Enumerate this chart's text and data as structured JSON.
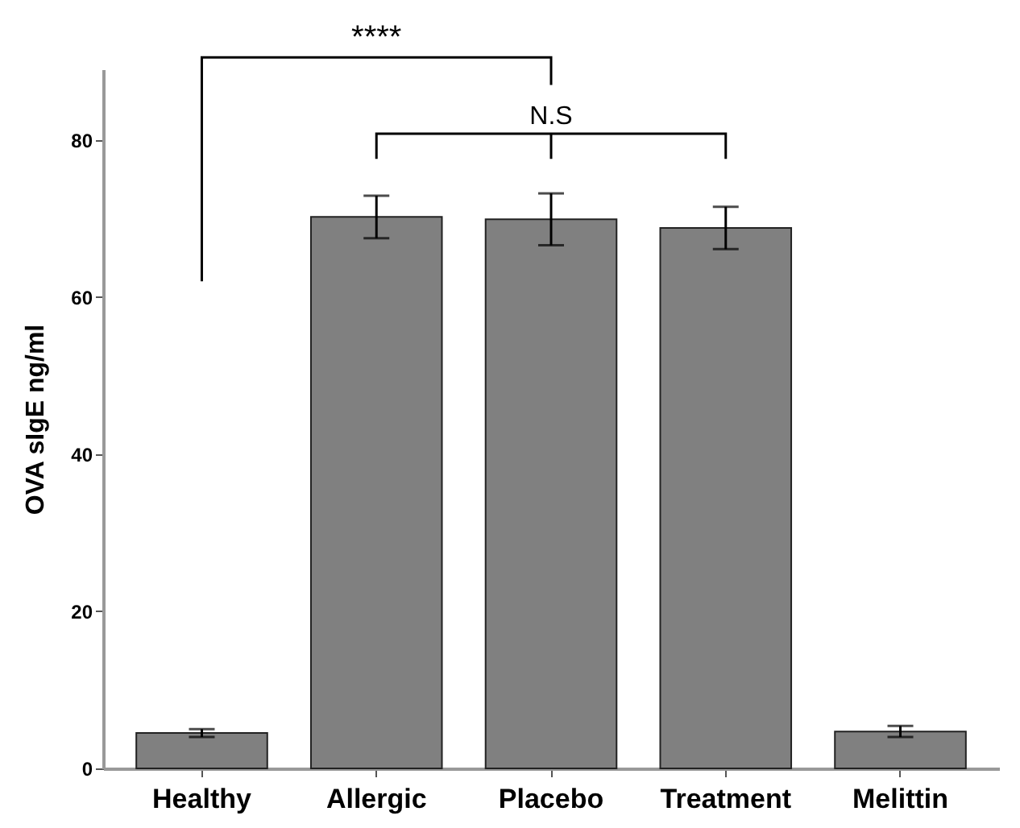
{
  "chart_data": {
    "type": "bar",
    "ylabel": "OVA sIgE ng/ml",
    "categories": [
      "Healthy",
      "Allergic",
      "Placebo",
      "Treatment",
      "Melittin"
    ],
    "values": [
      4.5,
      70.2,
      69.9,
      68.8,
      4.7
    ],
    "errors": [
      0.5,
      2.7,
      3.3,
      2.7,
      0.7
    ],
    "color": "#808080",
    "ylim": [
      0,
      89
    ],
    "yticks": [
      0,
      20,
      40,
      60,
      80
    ],
    "grid": false,
    "annotations": [
      "****",
      "N.S"
    ]
  }
}
